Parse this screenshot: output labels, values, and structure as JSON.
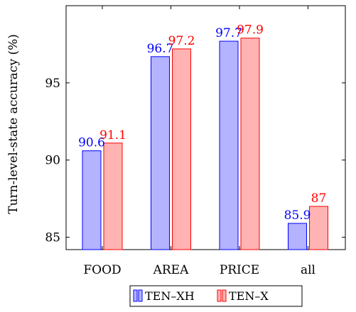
{
  "chart_data": {
    "type": "bar",
    "title": "",
    "xlabel": "",
    "ylabel": "Turn-level-state accuracy (%)",
    "categories": [
      "FOOD",
      "AREA",
      "PRICE",
      "all"
    ],
    "series": [
      {
        "name": "TEN–XH",
        "values": [
          90.6,
          96.7,
          97.7,
          85.9
        ],
        "labels": [
          "90.6",
          "96.7",
          "97.7",
          "85.9"
        ],
        "color": "#0000ff",
        "fill": "#b3b3ff"
      },
      {
        "name": "TEN–X",
        "values": [
          91.1,
          97.2,
          97.9,
          87
        ],
        "labels": [
          "91.1",
          "97.2",
          "97.9",
          "87"
        ],
        "color": "#ff0000",
        "fill": "#ffb3b3"
      }
    ],
    "ylim": [
      84.2,
      100.0
    ],
    "yticks": [
      85,
      90,
      95
    ],
    "ytick_labels": [
      "85",
      "90",
      "95"
    ],
    "grid": false,
    "legend_position": "bottom-center"
  }
}
